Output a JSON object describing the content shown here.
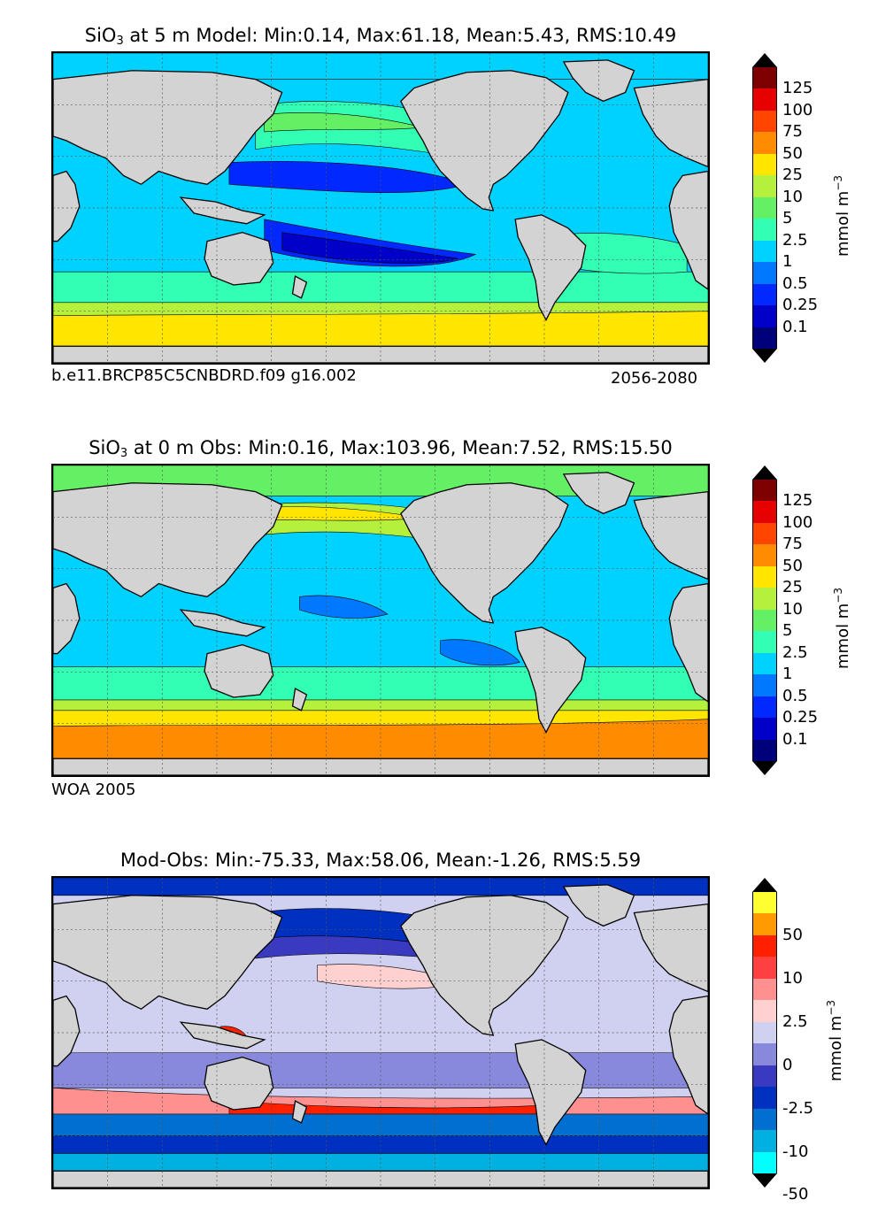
{
  "panels": [
    {
      "id": "model",
      "title_pre": "SiO",
      "title_sub": "3",
      "title_post": " at 5 m Model: Min:0.14, Max:61.18, Mean:5.43, RMS:10.49",
      "caption_left": "b.e11.BRCP85C5CNBDRD.f09 g16.002",
      "caption_right": "2056-2080",
      "colorbar_label": "mmol m",
      "colorbar_label_sup": "−3",
      "ticks": [
        "125",
        "100",
        "75",
        "50",
        "25",
        "10",
        "5",
        "2.5",
        "1",
        "0.5",
        "0.25",
        "0.1"
      ],
      "colors": [
        "#7f0000",
        "#e60000",
        "#ff4500",
        "#ff8c00",
        "#ffe600",
        "#b4f03c",
        "#64f064",
        "#32ffb4",
        "#00d2ff",
        "#0078ff",
        "#0028ff",
        "#0000c8",
        "#00007a"
      ],
      "extend_top_color": "#000000",
      "extend_bottom_color": "#000000"
    },
    {
      "id": "obs",
      "title_pre": "SiO",
      "title_sub": "3",
      "title_post": " at 0 m Obs: Min:0.16, Max:103.96, Mean:7.52, RMS:15.50",
      "caption_left": "WOA 2005",
      "caption_right": "",
      "colorbar_label": "mmol m",
      "colorbar_label_sup": "−3",
      "ticks": [
        "125",
        "100",
        "75",
        "50",
        "25",
        "10",
        "5",
        "2.5",
        "1",
        "0.5",
        "0.25",
        "0.1"
      ],
      "colors": [
        "#7f0000",
        "#e60000",
        "#ff4500",
        "#ff8c00",
        "#ffe600",
        "#b4f03c",
        "#64f064",
        "#32ffb4",
        "#00d2ff",
        "#0078ff",
        "#0028ff",
        "#0000c8",
        "#00007a"
      ],
      "extend_top_color": "#000000",
      "extend_bottom_color": "#000000"
    },
    {
      "id": "diff",
      "title_pre": "Mod-Obs: Min:-75.33, Max:58.06, Mean:-1.26, RMS:5.59",
      "title_sub": "",
      "title_post": "",
      "caption_left": "",
      "caption_right": "",
      "colorbar_label": "mmol m",
      "colorbar_label_sup": "−3",
      "ticks": [
        "50",
        "10",
        "2.5",
        "0",
        "-2.5",
        "-10",
        "-50"
      ],
      "colors": [
        "#ffff30",
        "#ff9b00",
        "#ff2000",
        "#ff4040",
        "#ff9090",
        "#ffd0d0",
        "#d0d0f0",
        "#8888dd",
        "#3a3ac0",
        "#0030c0",
        "#0070d0",
        "#00b0e0",
        "#00ffff"
      ],
      "extend_top_color": "#000000",
      "extend_bottom_color": "#000000"
    }
  ],
  "map_colors": {
    "land": "#d3d3d3",
    "coast": "#000000",
    "grid": "#555555"
  }
}
